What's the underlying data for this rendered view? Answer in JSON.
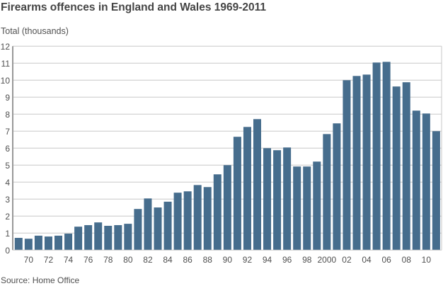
{
  "chart_data": {
    "type": "bar",
    "title": "Firearms offences in England and Wales 1969-2011",
    "ylabel": "Total (thousands)",
    "xlabel": "",
    "source": "Source: Home Office",
    "ylim": [
      0,
      12
    ],
    "yticks": [
      "0",
      "1",
      "2",
      "3",
      "4",
      "5",
      "6",
      "7",
      "8",
      "9",
      "10",
      "11",
      "12"
    ],
    "grid": true,
    "bar_color": "#466d8d",
    "grid_color": "#c8c8c8",
    "axis_color": "#999999",
    "categories": [
      1969,
      1970,
      1971,
      1972,
      1973,
      1974,
      1975,
      1976,
      1977,
      1978,
      1979,
      1980,
      1981,
      1982,
      1983,
      1984,
      1985,
      1986,
      1987,
      1988,
      1989,
      1990,
      1991,
      1992,
      1993,
      1994,
      1995,
      1996,
      1997,
      1998,
      1999,
      2000,
      2001,
      2002,
      2003,
      2004,
      2005,
      2006,
      2007,
      2008,
      2009,
      2010,
      2011
    ],
    "xtick_labels": [
      {
        "year": 1970,
        "label": "70"
      },
      {
        "year": 1972,
        "label": "72"
      },
      {
        "year": 1974,
        "label": "74"
      },
      {
        "year": 1976,
        "label": "76"
      },
      {
        "year": 1978,
        "label": "78"
      },
      {
        "year": 1980,
        "label": "80"
      },
      {
        "year": 1982,
        "label": "82"
      },
      {
        "year": 1984,
        "label": "84"
      },
      {
        "year": 1986,
        "label": "86"
      },
      {
        "year": 1988,
        "label": "88"
      },
      {
        "year": 1990,
        "label": "90"
      },
      {
        "year": 1992,
        "label": "92"
      },
      {
        "year": 1994,
        "label": "94"
      },
      {
        "year": 1996,
        "label": "96"
      },
      {
        "year": 1998,
        "label": "98"
      },
      {
        "year": 2000,
        "label": "2000"
      },
      {
        "year": 2002,
        "label": "02"
      },
      {
        "year": 2004,
        "label": "04"
      },
      {
        "year": 2006,
        "label": "06"
      },
      {
        "year": 2008,
        "label": "08"
      },
      {
        "year": 2010,
        "label": "10"
      }
    ],
    "values": [
      0.72,
      0.67,
      0.85,
      0.8,
      0.85,
      0.97,
      1.38,
      1.47,
      1.63,
      1.43,
      1.47,
      1.55,
      2.42,
      3.04,
      2.51,
      2.85,
      3.38,
      3.46,
      3.83,
      3.71,
      4.46,
      5.0,
      6.67,
      7.25,
      7.71,
      6.0,
      5.88,
      6.04,
      4.92,
      4.92,
      5.21,
      6.83,
      7.46,
      10.0,
      10.25,
      10.33,
      11.04,
      11.08,
      9.63,
      9.88,
      8.21,
      8.04,
      7.0
    ]
  }
}
